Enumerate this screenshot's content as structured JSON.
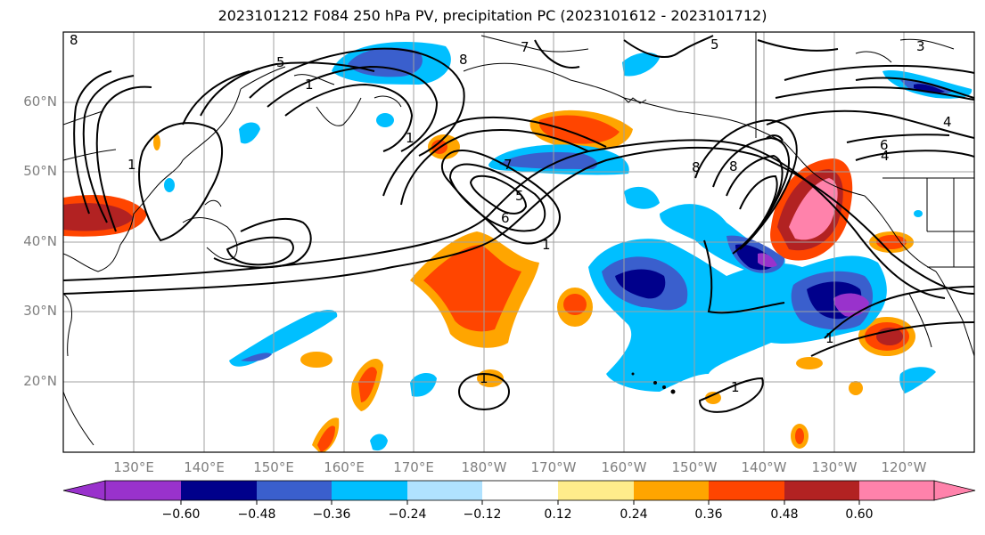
{
  "title": "2023101212 F084 250 hPa PV, precipitation PC (2023101612 - 2023101712)",
  "lat_labels": [
    "60°N",
    "50°N",
    "40°N",
    "30°N",
    "20°N"
  ],
  "lon_labels": [
    "130°E",
    "140°E",
    "150°E",
    "160°E",
    "170°E",
    "180°W",
    "170°W",
    "160°W",
    "150°W",
    "140°W",
    "130°W",
    "120°W"
  ],
  "colorbar": {
    "ticks": [
      "−0.60",
      "−0.48",
      "−0.36",
      "−0.24",
      "−0.12",
      "0.12",
      "0.24",
      "0.36",
      "0.48",
      "0.60"
    ],
    "colors": [
      "#9932cc",
      "#00008b",
      "#3a5fcd",
      "#00bfff",
      "#b0e2ff",
      "#ffffff",
      "#ffec8b",
      "#ffa500",
      "#ff4500",
      "#b22222",
      "#ff82ab"
    ]
  },
  "contour_labels": [
    "8",
    "5",
    "1",
    "8",
    "1",
    "7",
    "5",
    "6",
    "1",
    "8",
    "8",
    "7",
    "5",
    "6",
    "4",
    "3",
    "4",
    "1",
    "1",
    "1",
    "1"
  ]
}
